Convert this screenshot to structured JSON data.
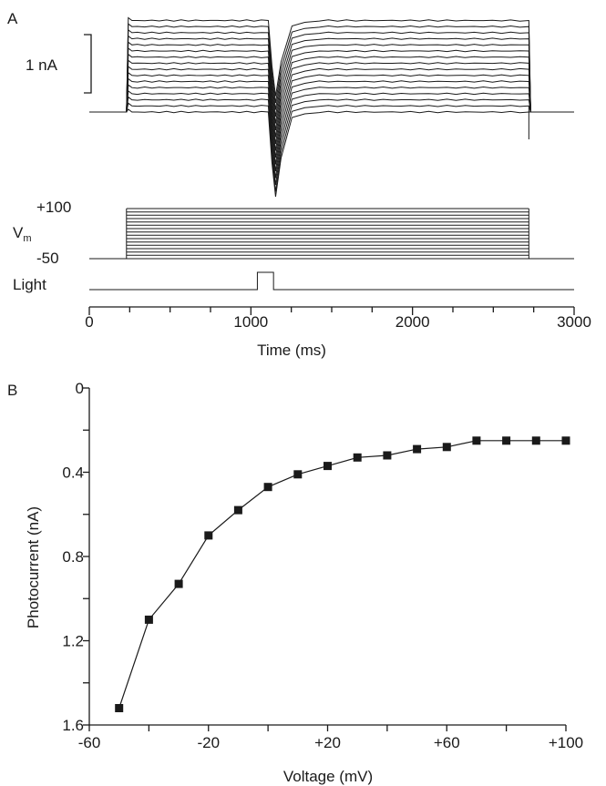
{
  "chart_data": [
    {
      "panel": "A",
      "type": "line",
      "xlabel": "Time (ms)",
      "x_ticks": [
        "0",
        "1000",
        "2000",
        "3000"
      ],
      "xlim": [
        0,
        3000
      ],
      "scale_bar_label": "1 nA",
      "voltage_label_main": "V",
      "voltage_label_sub": "m",
      "voltage_top_label": "+100",
      "voltage_bottom_label": "-50",
      "light_label": "Light",
      "step_on_ms": 230,
      "step_off_ms": 2720,
      "light_on_ms": 1040,
      "light_off_ms": 1140,
      "step_voltages_mv": [
        -50,
        -40,
        -30,
        -20,
        -10,
        0,
        10,
        20,
        30,
        40,
        50,
        60,
        70,
        80,
        90,
        100
      ],
      "holding_voltage_mv": -50
    },
    {
      "panel": "B",
      "type": "line",
      "xlabel": "Voltage (mV)",
      "ylabel": "Photocurrent (nA)",
      "x_ticks": [
        "-60",
        "-20",
        "+20",
        "+60",
        "+100"
      ],
      "y_ticks": [
        "0",
        "0.4",
        "0.8",
        "1.2",
        "1.6"
      ],
      "xlim": [
        -60,
        100
      ],
      "ylim": [
        0,
        1.6
      ],
      "y_inverted": true,
      "x": [
        -50,
        -40,
        -30,
        -20,
        -10,
        0,
        10,
        20,
        30,
        40,
        50,
        60,
        70,
        80,
        90,
        100
      ],
      "y": [
        1.52,
        1.1,
        0.93,
        0.7,
        0.58,
        0.47,
        0.41,
        0.37,
        0.33,
        0.32,
        0.29,
        0.28,
        0.25,
        0.25,
        0.25,
        0.25
      ]
    }
  ],
  "panel_letters": [
    "A",
    "B"
  ]
}
